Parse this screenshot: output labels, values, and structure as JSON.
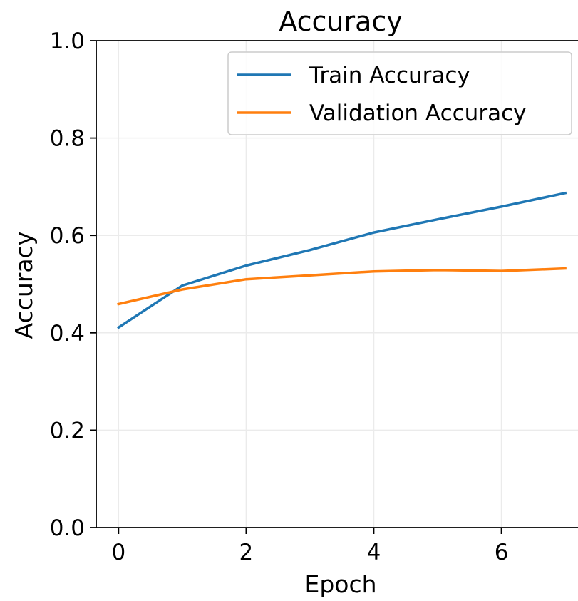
{
  "chart_data": {
    "type": "line",
    "title": "Accuracy",
    "xlabel": "Epoch",
    "ylabel": "Accuracy",
    "x": [
      0,
      1,
      2,
      3,
      4,
      5,
      6,
      7
    ],
    "xlim": [
      -0.35,
      7.2
    ],
    "ylim": [
      0.0,
      1.0
    ],
    "xticks": [
      0,
      2,
      4,
      6
    ],
    "yticks": [
      0.0,
      0.2,
      0.4,
      0.6,
      0.8,
      1.0
    ],
    "xtick_labels": [
      "0",
      "2",
      "4",
      "6"
    ],
    "ytick_labels": [
      "0.0",
      "0.2",
      "0.4",
      "0.6",
      "0.8",
      "1.0"
    ],
    "grid": true,
    "legend_position": "top-right",
    "series": [
      {
        "name": "Train Accuracy",
        "color": "#1f77b4",
        "values": [
          0.411,
          0.497,
          0.538,
          0.57,
          0.606,
          0.633,
          0.659,
          0.687
        ]
      },
      {
        "name": "Validation Accuracy",
        "color": "#ff7f0e",
        "values": [
          0.459,
          0.489,
          0.51,
          0.518,
          0.526,
          0.529,
          0.527,
          0.532
        ]
      }
    ]
  }
}
